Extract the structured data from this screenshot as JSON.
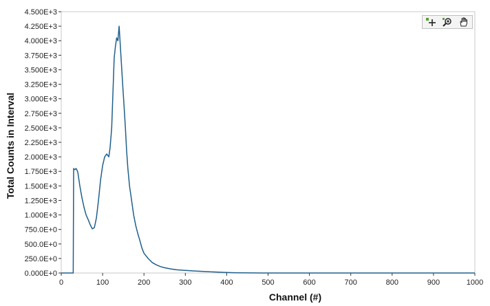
{
  "chart_data": {
    "type": "line",
    "xlabel": "Channel (#)",
    "ylabel": "Total Counts in Interval",
    "xlim": [
      0,
      1000
    ],
    "ylim": [
      0,
      4500
    ],
    "x_ticks": [
      "0",
      "100",
      "200",
      "300",
      "400",
      "500",
      "600",
      "700",
      "800",
      "900",
      "1000"
    ],
    "y_ticks": [
      "0.000E+0",
      "250.0E+0",
      "500.0E+0",
      "750.0E+0",
      "1.000E+3",
      "1.250E+3",
      "1.500E+3",
      "1.750E+3",
      "2.000E+3",
      "2.250E+3",
      "2.500E+3",
      "2.750E+3",
      "3.000E+3",
      "3.250E+3",
      "3.500E+3",
      "3.750E+3",
      "4.000E+3",
      "4.250E+3",
      "4.500E+3"
    ],
    "grid": false,
    "line_color": "#1f5f8b",
    "series": [
      {
        "x": [
          0,
          29,
          30,
          31,
          33,
          36,
          40,
          45,
          50,
          55,
          60,
          65,
          70,
          75,
          80,
          85,
          90,
          95,
          100,
          105,
          110,
          115,
          118,
          122,
          125,
          128,
          131,
          134,
          137,
          140,
          143,
          146,
          149,
          152,
          155,
          158,
          161,
          165,
          170,
          175,
          180,
          185,
          190,
          195,
          200,
          210,
          220,
          230,
          240,
          250,
          265,
          280,
          300,
          320,
          340,
          360,
          380,
          400,
          420,
          440,
          500,
          600,
          700,
          800,
          900,
          1000
        ],
        "y": [
          0,
          0,
          1800,
          1790,
          1780,
          1800,
          1740,
          1500,
          1300,
          1130,
          1000,
          920,
          830,
          760,
          780,
          950,
          1250,
          1600,
          1850,
          2000,
          2050,
          2000,
          2150,
          2500,
          3100,
          3700,
          3900,
          4050,
          4000,
          4250,
          3900,
          3550,
          3200,
          2850,
          2500,
          2100,
          1800,
          1500,
          1250,
          1000,
          820,
          680,
          560,
          430,
          340,
          250,
          180,
          140,
          110,
          90,
          70,
          55,
          45,
          35,
          28,
          20,
          15,
          10,
          5,
          2,
          0,
          0,
          0,
          0,
          0,
          0
        ]
      }
    ]
  },
  "palette": {
    "icons": [
      "cursor-move-icon",
      "zoom-icon",
      "pan-hand-icon"
    ]
  }
}
